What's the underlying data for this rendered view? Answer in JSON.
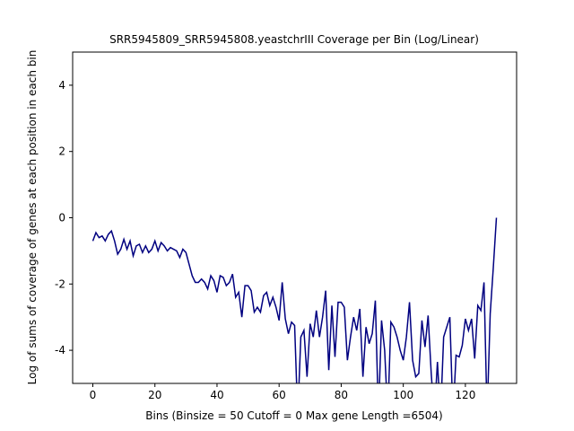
{
  "chart_data": {
    "type": "line",
    "title": "SRR5945809_SRR5945808.yeastchrIII Coverage per Bin (Log/Linear)",
    "x_label": "Bins  (Binsize = 50 Cutoff = 0 Max gene Length =6504)",
    "y_label": "Log of sums of coverage of genes at each position in each bin",
    "x": [
      0,
      1,
      2,
      3,
      4,
      5,
      6,
      7,
      8,
      9,
      10,
      11,
      12,
      13,
      14,
      15,
      16,
      17,
      18,
      19,
      20,
      21,
      22,
      23,
      24,
      25,
      26,
      27,
      28,
      29,
      30,
      31,
      32,
      33,
      34,
      35,
      36,
      37,
      38,
      39,
      40,
      41,
      42,
      43,
      44,
      45,
      46,
      47,
      48,
      49,
      50,
      51,
      52,
      53,
      54,
      55,
      56,
      57,
      58,
      59,
      60,
      61,
      62,
      63,
      64,
      65,
      66,
      67,
      68,
      69,
      70,
      71,
      72,
      73,
      74,
      75,
      76,
      77,
      78,
      79,
      80,
      81,
      82,
      83,
      84,
      85,
      86,
      87,
      88,
      89,
      90,
      91,
      92,
      93,
      94,
      95,
      96,
      97,
      98,
      99,
      100,
      101,
      102,
      103,
      104,
      105,
      106,
      107,
      108,
      109,
      110,
      111,
      112,
      113,
      114,
      115,
      116,
      117,
      118,
      119,
      120,
      121,
      122,
      123,
      124,
      125,
      126,
      127,
      128,
      129,
      130
    ],
    "series": [
      {
        "color": "#000080",
        "values": [
          -0.7,
          -0.45,
          -0.6,
          -0.55,
          -0.7,
          -0.5,
          -0.4,
          -0.7,
          -1.1,
          -0.95,
          -0.65,
          -0.95,
          -0.7,
          -1.15,
          -0.85,
          -0.8,
          -1.05,
          -0.85,
          -1.05,
          -0.95,
          -0.7,
          -1.0,
          -0.75,
          -0.85,
          -1.0,
          -0.9,
          -0.95,
          -1.0,
          -1.2,
          -0.95,
          -1.05,
          -1.4,
          -1.75,
          -1.95,
          -1.95,
          -1.85,
          -1.95,
          -2.15,
          -1.75,
          -1.9,
          -2.25,
          -1.75,
          -1.8,
          -2.05,
          -1.95,
          -1.7,
          -2.4,
          -2.25,
          -3.0,
          -2.05,
          -2.05,
          -2.2,
          -2.85,
          -2.7,
          -2.85,
          -2.35,
          -2.25,
          -2.65,
          -2.4,
          -2.7,
          -3.1,
          -1.95,
          -3.05,
          -3.5,
          -3.15,
          -3.25,
          -6,
          -3.6,
          -3.4,
          -4.8,
          -3.2,
          -3.6,
          -2.8,
          -3.6,
          -3.0,
          -2.2,
          -4.6,
          -2.65,
          -4.2,
          -2.55,
          -2.55,
          -2.7,
          -4.3,
          -3.6,
          -3.0,
          -3.4,
          -2.75,
          -4.8,
          -3.3,
          -3.8,
          -3.5,
          -2.5,
          -6,
          -3.1,
          -4.0,
          -6,
          -3.15,
          -3.3,
          -3.6,
          -4.0,
          -4.3,
          -3.6,
          -2.55,
          -4.3,
          -4.8,
          -4.7,
          -3.1,
          -3.9,
          -2.95,
          -4.7,
          -6,
          -4.35,
          -6,
          -3.6,
          -3.3,
          -3.0,
          -6,
          -4.15,
          -4.2,
          -3.85,
          -3.05,
          -3.4,
          -3.05,
          -4.25,
          -2.65,
          -2.8,
          -1.95,
          -6,
          -2.9,
          -1.5,
          0.0
        ]
      }
    ],
    "xlim": [
      -6.5,
      136.5
    ],
    "xticks": [
      0,
      20,
      40,
      60,
      80,
      100,
      120
    ],
    "ylim": [
      -5,
      5
    ],
    "yticks": [
      -4,
      -2,
      0,
      2,
      4
    ]
  }
}
